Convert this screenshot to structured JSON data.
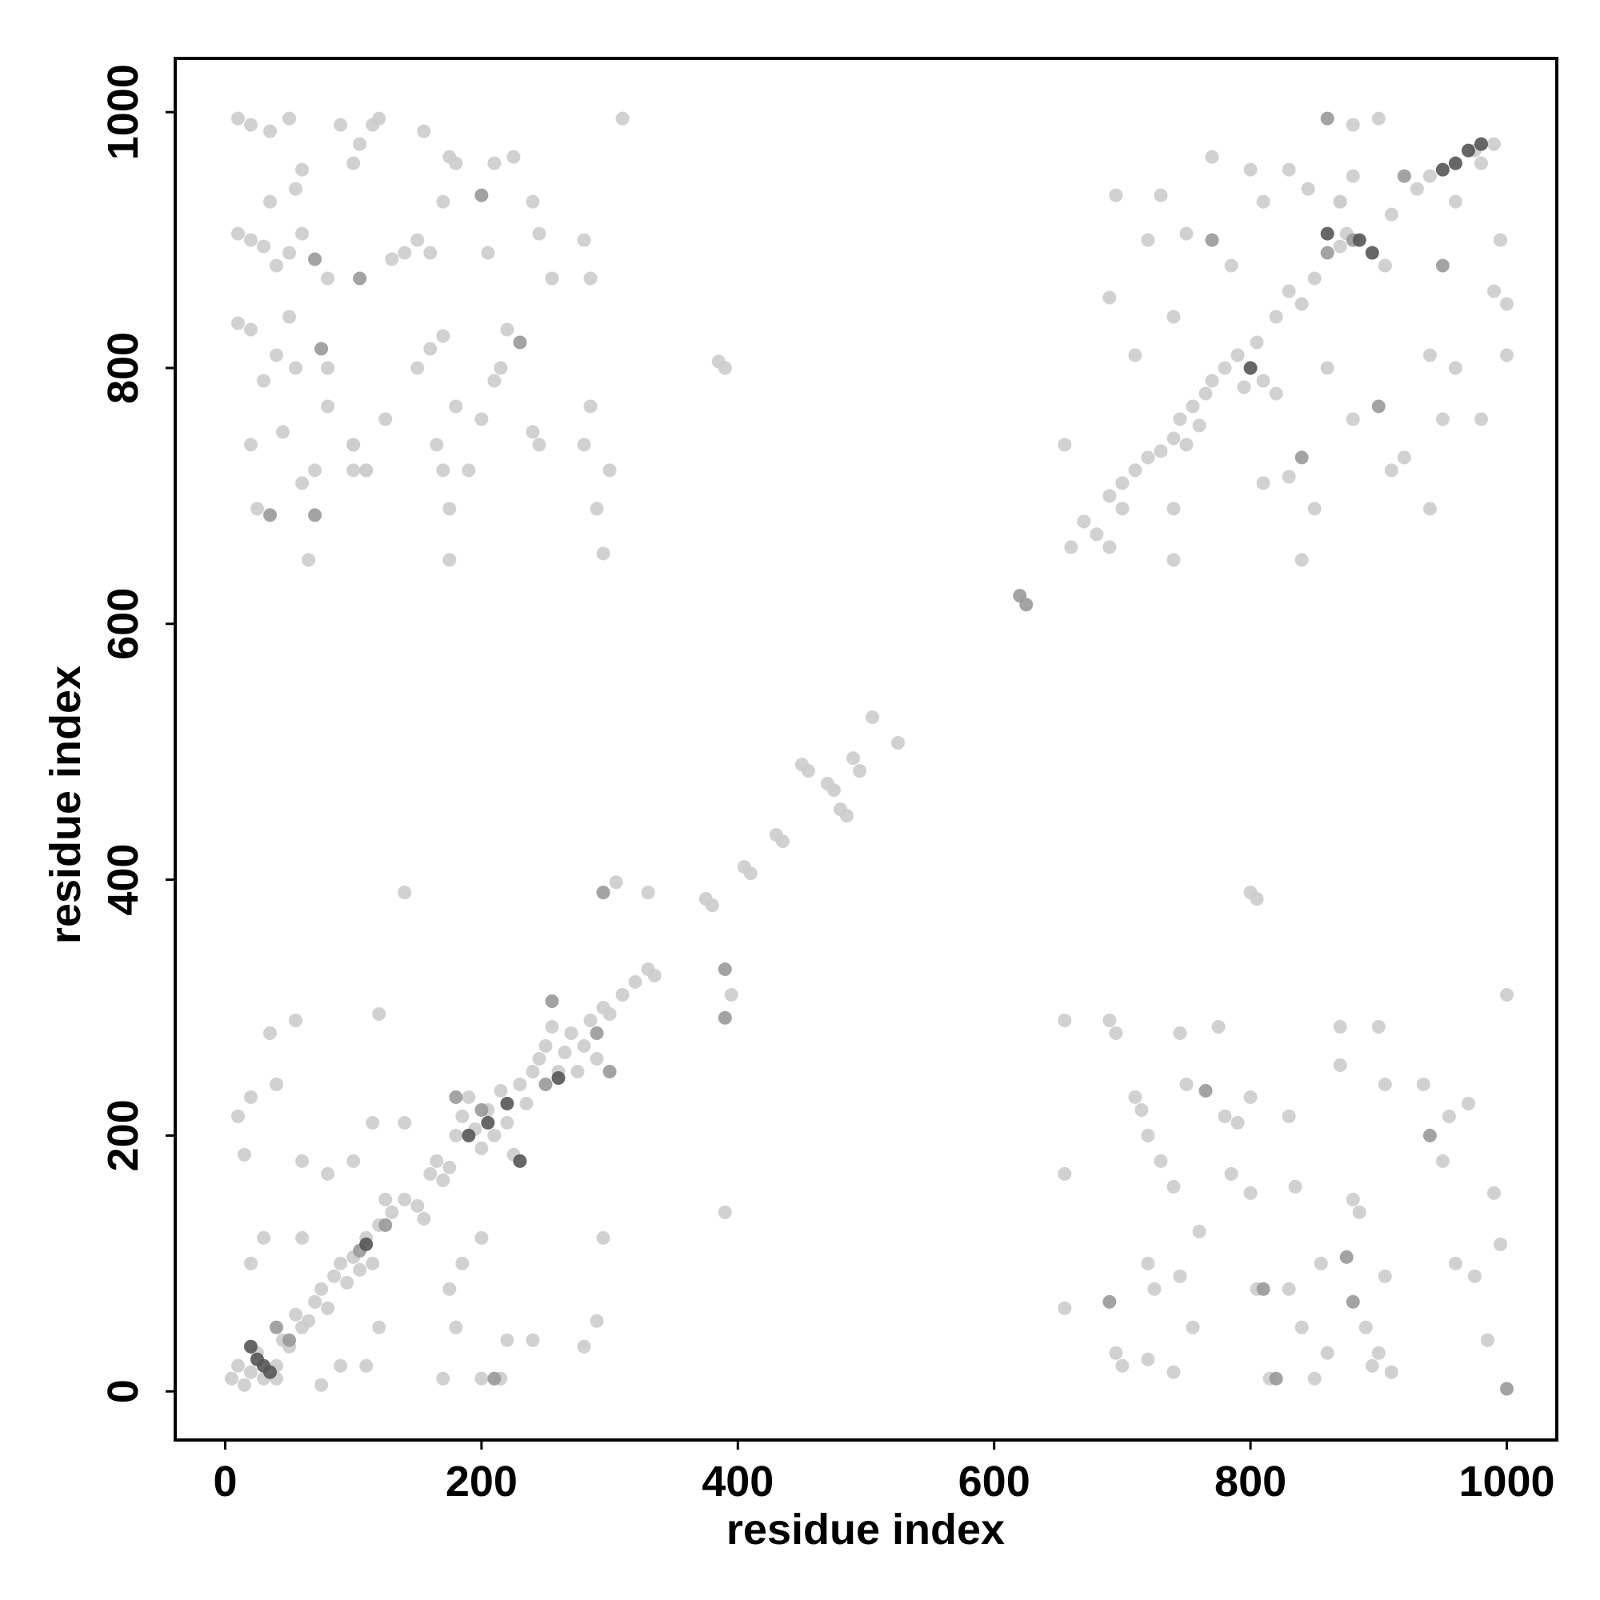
{
  "chart_data": {
    "type": "scatter",
    "xlabel": "residue index",
    "ylabel": "residue index",
    "xlim": [
      -39,
      1039
    ],
    "ylim": [
      -38,
      1042
    ],
    "xticks": [
      0,
      200,
      400,
      600,
      800,
      1000
    ],
    "yticks": [
      0,
      200,
      400,
      600,
      800,
      1000
    ],
    "series": [
      {
        "color": "#cccccc",
        "x": [
          5,
          10,
          15,
          20,
          25,
          30,
          40,
          45,
          50,
          55,
          60,
          65,
          70,
          75,
          80,
          85,
          90,
          95,
          100,
          105,
          110,
          115,
          120,
          125,
          130,
          140,
          150,
          155,
          160,
          165,
          170,
          175,
          180,
          185,
          190,
          195,
          200,
          205,
          210,
          215,
          220,
          225,
          230,
          235,
          240,
          245,
          250,
          255,
          260,
          265,
          270,
          275,
          280,
          285,
          290,
          295,
          300,
          310,
          320,
          330,
          335,
          10,
          15,
          20,
          35,
          40,
          55,
          60,
          80,
          100,
          115,
          120,
          140,
          180,
          175,
          185,
          200,
          220,
          240,
          280,
          290,
          295,
          110,
          120,
          90,
          75,
          170,
          200,
          215,
          60,
          30,
          20,
          40,
          375,
          380,
          395,
          390,
          140,
          305,
          330,
          405,
          410,
          430,
          435,
          450,
          455,
          470,
          475,
          480,
          485,
          490,
          495,
          505,
          525,
          385,
          390,
          800,
          805,
          310,
          10,
          20,
          35,
          50,
          60,
          55,
          35,
          10,
          20,
          30,
          40,
          50,
          60,
          80,
          90,
          100,
          105,
          115,
          120,
          155,
          170,
          175,
          180,
          205,
          210,
          225,
          240,
          245,
          255,
          280,
          285,
          130,
          140,
          150,
          160,
          10,
          20,
          30,
          40,
          50,
          55,
          80,
          80,
          100,
          100,
          110,
          125,
          150,
          160,
          170,
          165,
          170,
          175,
          175,
          180,
          190,
          200,
          210,
          215,
          220,
          240,
          245,
          280,
          285,
          290,
          295,
          300,
          20,
          25,
          65,
          70,
          60,
          45,
          100,
          110,
          660,
          670,
          680,
          690,
          700,
          710,
          720,
          730,
          740,
          745,
          750,
          755,
          760,
          765,
          770,
          780,
          790,
          795,
          805,
          810,
          820,
          830,
          840,
          850,
          870,
          875,
          905,
          910,
          930,
          940,
          975,
          990,
          655,
          690,
          695,
          710,
          720,
          730,
          740,
          750,
          770,
          785,
          800,
          810,
          830,
          845,
          880,
          900,
          850,
          830,
          880,
          910,
          920,
          940,
          950,
          960,
          980,
          990,
          995,
          1000,
          1000,
          940,
          870,
          860,
          820,
          810,
          840,
          740,
          740,
          700,
          690,
          960,
          980,
          870,
          880,
          655,
          655,
          655,
          690,
          695,
          695,
          700,
          710,
          715,
          720,
          720,
          725,
          720,
          730,
          740,
          745,
          750,
          760,
          745,
          755,
          740,
          775,
          780,
          785,
          790,
          800,
          800,
          805,
          815,
          830,
          835,
          840,
          850,
          855,
          860,
          870,
          870,
          880,
          885,
          890,
          895,
          900,
          905,
          905,
          910,
          935,
          950,
          955,
          960,
          970,
          975,
          985,
          990,
          995,
          1000,
          900,
          830
        ],
        "y": [
          10,
          20,
          5,
          15,
          30,
          10,
          20,
          40,
          35,
          60,
          50,
          55,
          70,
          80,
          65,
          90,
          100,
          85,
          105,
          95,
          120,
          100,
          130,
          150,
          140,
          150,
          145,
          135,
          170,
          180,
          165,
          175,
          200,
          215,
          230,
          205,
          190,
          220,
          200,
          235,
          210,
          185,
          240,
          225,
          250,
          260,
          270,
          285,
          250,
          265,
          280,
          250,
          270,
          290,
          260,
          300,
          295,
          310,
          320,
          330,
          325,
          215,
          185,
          230,
          280,
          240,
          290,
          180,
          170,
          180,
          210,
          295,
          210,
          50,
          80,
          100,
          120,
          40,
          40,
          35,
          55,
          120,
          20,
          50,
          20,
          5,
          10,
          10,
          10,
          120,
          120,
          100,
          10,
          385,
          380,
          310,
          140,
          390,
          398,
          390,
          410,
          405,
          435,
          430,
          490,
          485,
          475,
          470,
          455,
          450,
          495,
          485,
          527,
          507,
          805,
          800,
          390,
          385,
          995,
          995,
          990,
          985,
          995,
          955,
          940,
          930,
          905,
          900,
          895,
          880,
          890,
          905,
          870,
          990,
          960,
          975,
          990,
          995,
          985,
          930,
          965,
          960,
          890,
          960,
          965,
          930,
          905,
          870,
          900,
          870,
          885,
          890,
          900,
          890,
          835,
          830,
          790,
          810,
          840,
          800,
          800,
          770,
          740,
          720,
          720,
          760,
          800,
          815,
          825,
          740,
          720,
          690,
          650,
          770,
          720,
          760,
          790,
          800,
          830,
          750,
          740,
          740,
          770,
          690,
          655,
          720,
          740,
          690,
          650,
          720,
          710,
          750,
          740,
          720,
          660,
          680,
          670,
          700,
          690,
          720,
          730,
          735,
          745,
          760,
          740,
          770,
          755,
          780,
          790,
          800,
          810,
          785,
          820,
          790,
          840,
          860,
          850,
          870,
          895,
          905,
          880,
          920,
          940,
          950,
          970,
          975,
          740,
          855,
          935,
          810,
          900,
          935,
          840,
          905,
          965,
          880,
          955,
          930,
          955,
          940,
          990,
          995,
          690,
          715,
          760,
          720,
          730,
          690,
          760,
          800,
          760,
          860,
          900,
          850,
          810,
          810,
          930,
          800,
          780,
          710,
          650,
          650,
          690,
          710,
          660,
          930,
          960,
          930,
          950,
          290,
          170,
          65,
          290,
          280,
          30,
          20,
          230,
          220,
          200,
          100,
          80,
          25,
          180,
          160,
          280,
          240,
          125,
          90,
          50,
          15,
          285,
          215,
          170,
          210,
          230,
          155,
          80,
          10,
          215,
          160,
          50,
          10,
          100,
          30,
          285,
          255,
          150,
          140,
          50,
          20,
          285,
          240,
          90,
          15,
          240,
          180,
          215,
          100,
          225,
          90,
          40,
          155,
          115,
          310,
          30,
          80
        ]
      },
      {
        "color": "#999999",
        "x": [
          70,
          70,
          35,
          200,
          230,
          75,
          105,
          295,
          390,
          390,
          290,
          300,
          210,
          40,
          50,
          105,
          125,
          180,
          200,
          250,
          255,
          620,
          625,
          770,
          860,
          900,
          840,
          860,
          880,
          940,
          690,
          880,
          820,
          1000,
          875,
          765,
          810,
          950,
          920
        ],
        "y": [
          885,
          685,
          685,
          935,
          820,
          815,
          870,
          390,
          330,
          292,
          280,
          250,
          10,
          50,
          40,
          110,
          130,
          230,
          220,
          240,
          305,
          622,
          615,
          900,
          995,
          770,
          730,
          890,
          900,
          200,
          70,
          70,
          10,
          2,
          105,
          235,
          80,
          880,
          950
        ]
      },
      {
        "color": "#555555",
        "x": [
          20,
          25,
          30,
          35,
          110,
          190,
          205,
          220,
          230,
          260,
          885,
          895,
          950,
          960,
          970,
          800,
          860,
          980
        ],
        "y": [
          35,
          25,
          20,
          15,
          115,
          200,
          210,
          225,
          180,
          245,
          900,
          890,
          955,
          960,
          970,
          800,
          905,
          975
        ]
      }
    ]
  }
}
